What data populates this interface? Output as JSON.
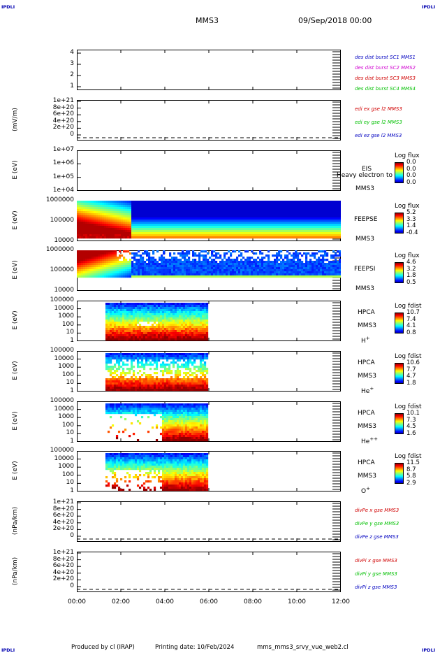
{
  "header": {
    "corner_tl": "IPDLI",
    "corner_tr": "IPDLI",
    "corner_bl": "IPDLI",
    "corner_br": "IPDLI",
    "spacecraft": "MMS3",
    "datetime": "09/Sep/2018 00:00"
  },
  "footer": {
    "produced_by": "Produced by cl (IRAP)",
    "printing": "Printing date: 10/Feb/2024",
    "file": "mms_mms3_srvy_vue_web2.cl"
  },
  "x_ticks": [
    "00:00",
    "02:00",
    "04:00",
    "06:00",
    "08:00",
    "10:00",
    "12:00"
  ],
  "colors": {
    "red": "#d00000",
    "green": "#00c000",
    "blue": "#0000c0",
    "magenta": "#d000d0",
    "label_blue": "#0000b0"
  },
  "chart_data": [
    {
      "type": "line",
      "panel": "spacecraft-config",
      "y_ticks": [
        "4",
        "3",
        "2",
        "1"
      ],
      "ylim": [
        0.5,
        4.5
      ],
      "ylabel": "",
      "legend": [
        {
          "text": "des dist burst SC1 MMS1",
          "color": "#0000c0"
        },
        {
          "text": "des dist burst SC2 MMS2",
          "color": "#d000d0"
        },
        {
          "text": "des dist burst SC3 MMS3",
          "color": "#d00000"
        },
        {
          "text": "des dist burst SC4 MMS4",
          "color": "#00c000"
        }
      ],
      "series": []
    },
    {
      "type": "line",
      "panel": "edi-efield",
      "ylabel": "(mV/m)",
      "y_ticks": [
        "1e+21",
        "8e+20",
        "6e+20",
        "4e+20",
        "2e+20",
        "0"
      ],
      "ylim": [
        0,
        1.1e+21
      ],
      "legend": [
        {
          "text": "edi ex gse l2 MMS3",
          "color": "#d00000"
        },
        {
          "text": "edi ey gse l2 MMS3",
          "color": "#00c000"
        },
        {
          "text": "edi ez gse l2 MMS3",
          "color": "#0000c0"
        }
      ],
      "series": []
    },
    {
      "type": "heatmap",
      "panel": "eis",
      "ylabel": "E (eV)",
      "y_ticks": [
        "1e+07",
        "1e+06",
        "1e+05",
        "1e+04"
      ],
      "y_log": true,
      "ylim": [
        10000.0,
        10000000.0
      ],
      "instrument": [
        "EIS",
        "MMS3"
      ],
      "overlay_text": "Heavy electron to",
      "colorbar": {
        "title": "Log flux",
        "values": [
          "0.0",
          "0.0",
          "0.0",
          "0.0"
        ]
      },
      "coverage": []
    },
    {
      "type": "heatmap",
      "panel": "feeps-electron",
      "ylabel": "E (eV)",
      "y_ticks": [
        "1000000",
        "100000",
        "10000"
      ],
      "y_log": true,
      "ylim": [
        10000.0,
        1000000.0
      ],
      "instrument": [
        "FEEPSE",
        "MMS3"
      ],
      "colorbar": {
        "title": "Log flux",
        "values": [
          "5.2",
          "3.3",
          "1.4",
          "-0.4"
        ]
      },
      "coverage": [
        [
          0,
          12
        ]
      ]
    },
    {
      "type": "heatmap",
      "panel": "feeps-ion",
      "ylabel": "E (eV)",
      "y_ticks": [
        "1000000",
        "100000",
        "10000"
      ],
      "y_log": true,
      "ylim": [
        10000.0,
        1000000.0
      ],
      "instrument": [
        "FEEPSI",
        "MMS3"
      ],
      "colorbar": {
        "title": "Log flux",
        "values": [
          "4.6",
          "3.2",
          "1.8",
          "0.5"
        ]
      },
      "coverage": [
        [
          0,
          12
        ]
      ]
    },
    {
      "type": "heatmap",
      "panel": "hpca-h",
      "ylabel": "E (eV)",
      "y_ticks": [
        "100000",
        "10000",
        "1000",
        "100",
        "10",
        "1"
      ],
      "y_log": true,
      "ylim": [
        1,
        100000.0
      ],
      "instrument": [
        "HPCA",
        "MMS3"
      ],
      "species": "H",
      "charge": "+",
      "colorbar": {
        "title": "Log fdist",
        "values": [
          "10.7",
          "7.4",
          "4.1",
          "0.8"
        ]
      },
      "coverage": [
        [
          1.3,
          6.0
        ]
      ]
    },
    {
      "type": "heatmap",
      "panel": "hpca-he",
      "ylabel": "E (eV)",
      "y_ticks": [
        "100000",
        "10000",
        "1000",
        "100",
        "10",
        "1"
      ],
      "y_log": true,
      "ylim": [
        1,
        100000.0
      ],
      "instrument": [
        "HPCA",
        "MMS3"
      ],
      "species": "He",
      "charge": "+",
      "colorbar": {
        "title": "Log fdist",
        "values": [
          "10.6",
          "7.7",
          "4.7",
          "1.8"
        ]
      },
      "coverage": [
        [
          1.3,
          6.0
        ]
      ]
    },
    {
      "type": "heatmap",
      "panel": "hpca-hepp",
      "ylabel": "E (eV)",
      "y_ticks": [
        "100000",
        "10000",
        "1000",
        "100",
        "10",
        "1"
      ],
      "y_log": true,
      "ylim": [
        1,
        100000.0
      ],
      "instrument": [
        "HPCA",
        "MMS3"
      ],
      "species": "He",
      "charge": "++",
      "colorbar": {
        "title": "Log fdist",
        "values": [
          "10.1",
          "7.3",
          "4.5",
          "1.6"
        ]
      },
      "coverage": [
        [
          1.3,
          6.0
        ]
      ]
    },
    {
      "type": "heatmap",
      "panel": "hpca-o",
      "ylabel": "E (eV)",
      "y_ticks": [
        "100000",
        "10000",
        "1000",
        "100",
        "10",
        "1"
      ],
      "y_log": true,
      "ylim": [
        1,
        100000.0
      ],
      "instrument": [
        "HPCA",
        "MMS3"
      ],
      "species": "O",
      "charge": "+",
      "colorbar": {
        "title": "Log fdist",
        "values": [
          "11.5",
          "8.7",
          "5.8",
          "2.9"
        ]
      },
      "coverage": [
        [
          1.3,
          6.0
        ]
      ]
    },
    {
      "type": "line",
      "panel": "divpe",
      "ylabel": "(nPa/km)",
      "y_ticks": [
        "1e+21",
        "8e+20",
        "6e+20",
        "4e+20",
        "2e+20",
        "0"
      ],
      "ylim": [
        0,
        1.1e+21
      ],
      "legend": [
        {
          "text": "divPe x gse MMS3",
          "color": "#d00000"
        },
        {
          "text": "divPe y gse MMS3",
          "color": "#00c000"
        },
        {
          "text": "divPe z gse MMS3",
          "color": "#0000c0"
        }
      ],
      "series": []
    },
    {
      "type": "line",
      "panel": "divpi",
      "ylabel": "(nPa/km)",
      "y_ticks": [
        "1e+21",
        "8e+20",
        "6e+20",
        "4e+20",
        "2e+20",
        "0"
      ],
      "ylim": [
        0,
        1.1e+21
      ],
      "legend": [
        {
          "text": "divPi x gse MMS3",
          "color": "#d00000"
        },
        {
          "text": "divPi y gse MMS3",
          "color": "#00c000"
        },
        {
          "text": "divPi z gse MMS3",
          "color": "#0000c0"
        }
      ],
      "series": []
    }
  ]
}
